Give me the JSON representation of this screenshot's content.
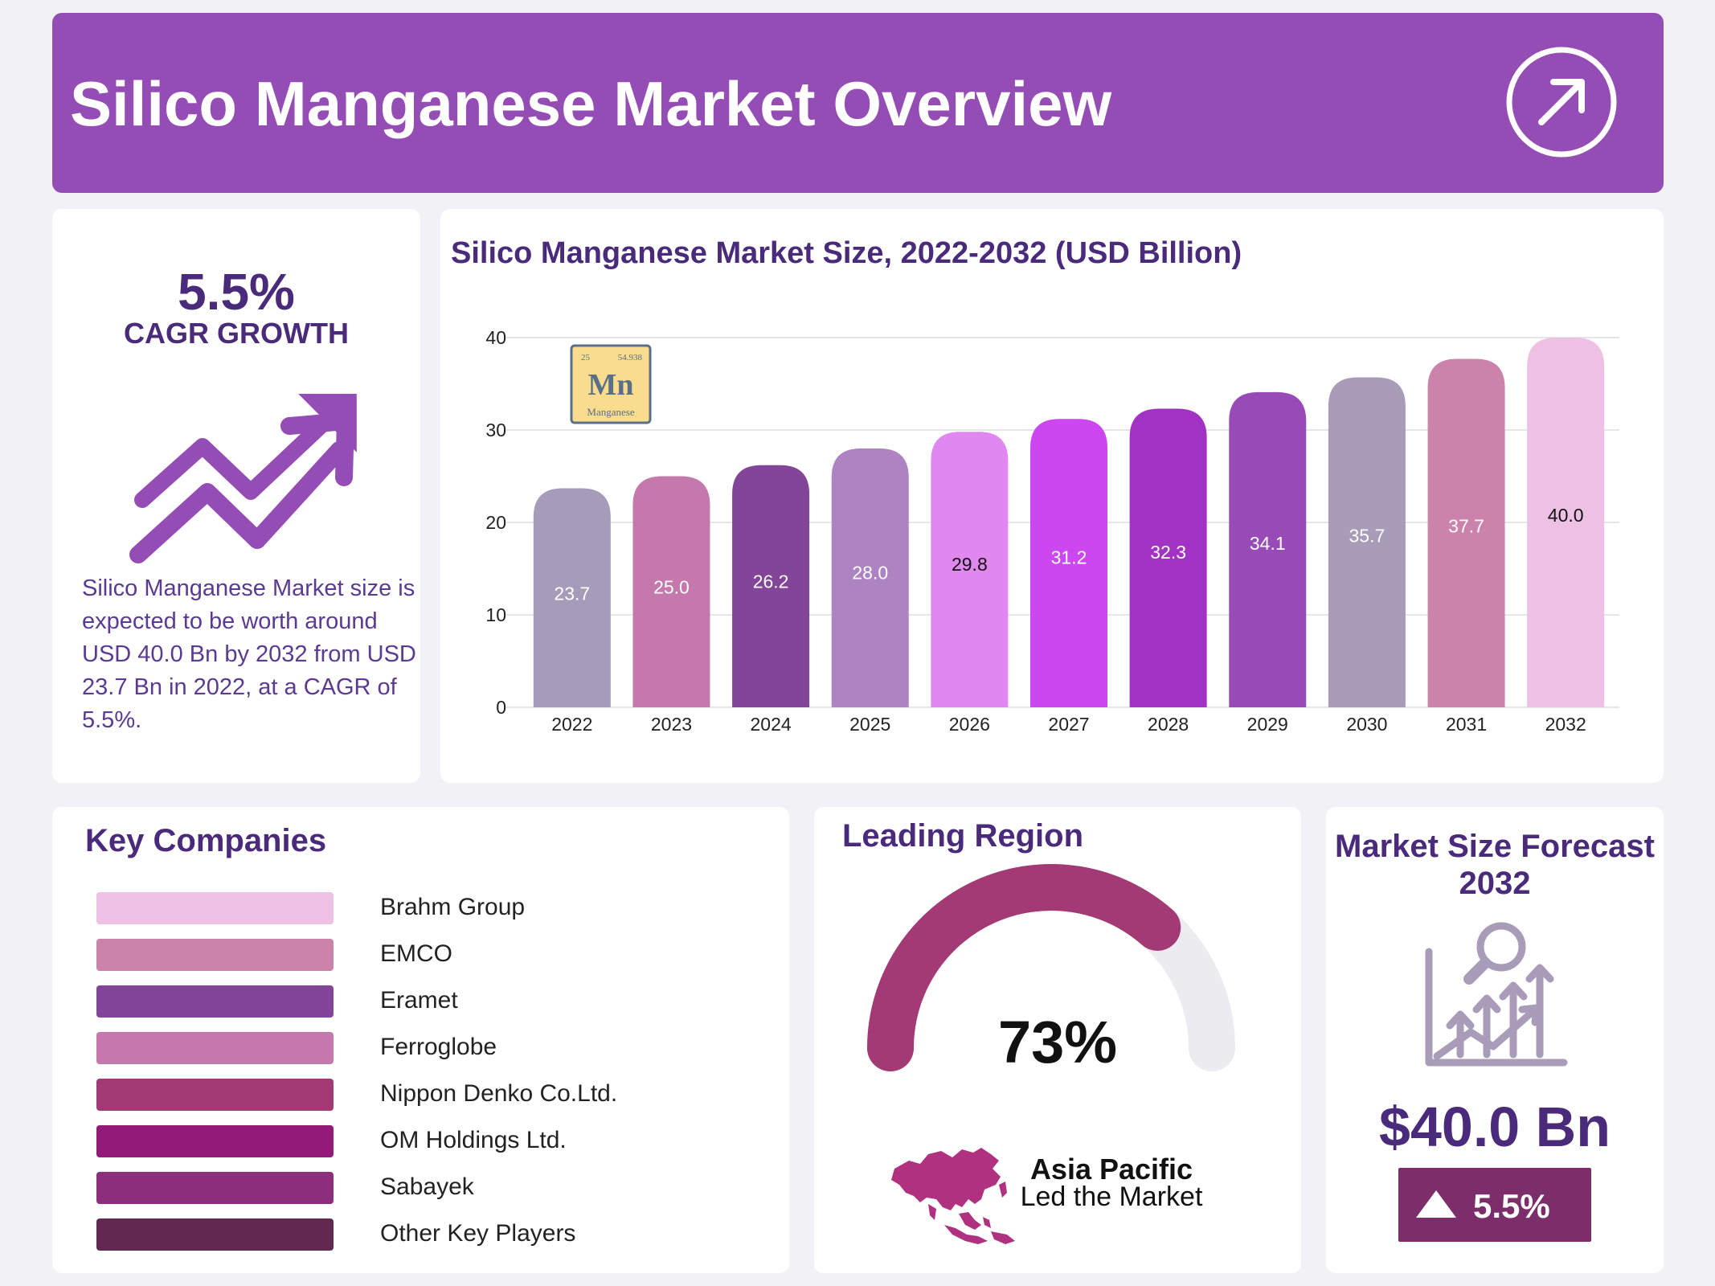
{
  "header": {
    "title": "Silico Manganese Market Overview",
    "icon": "arrow-up-right-circle-icon"
  },
  "cagr_card": {
    "value": "5.5%",
    "label": "CAGR GROWTH",
    "icon": "trend-up-arrow-icon",
    "description": "Silico Manganese Market size is expected to be worth around USD 40.0 Bn by 2032 from USD 23.7 Bn in 2022, at a CAGR of 5.5%."
  },
  "element_tile": {
    "number": "25",
    "mass": "54.938",
    "symbol": "Mn",
    "name": "Manganese"
  },
  "chart_data": {
    "type": "bar",
    "title": "Silico Manganese Market Size, 2022-2032 (USD Billion)",
    "xlabel": "",
    "ylabel": "",
    "ylim": [
      0,
      40
    ],
    "yticks": [
      0,
      10,
      20,
      30,
      40
    ],
    "grid": true,
    "categories": [
      "2022",
      "2023",
      "2024",
      "2025",
      "2026",
      "2027",
      "2028",
      "2029",
      "2030",
      "2031",
      "2032"
    ],
    "values": [
      23.7,
      25.0,
      26.2,
      28.0,
      29.8,
      31.2,
      32.3,
      34.1,
      35.7,
      37.7,
      40.0
    ],
    "labels": [
      "23.7",
      "25.0",
      "26.2",
      "28.0",
      "29.8",
      "31.2",
      "32.3",
      "34.1",
      "35.7",
      "37.7",
      "40.0"
    ],
    "colors": [
      "#a69cba",
      "#c478ab",
      "#834597",
      "#ad83c1",
      "#e088ef",
      "#cc47f0",
      "#a232c3",
      "#984ab6",
      "#a89cb8",
      "#cb82ab",
      "#ecc1e3"
    ],
    "label_colors": [
      "#ffffff",
      "#ffffff",
      "#ffffff",
      "#ffffff",
      "#111111",
      "#ffffff",
      "#ffffff",
      "#ffffff",
      "#ffffff",
      "#ffffff",
      "#111111"
    ]
  },
  "companies": {
    "title": "Key Companies",
    "items": [
      {
        "name": "Brahm Group",
        "color": "#edc1e4"
      },
      {
        "name": "EMCO",
        "color": "#cb82ab"
      },
      {
        "name": "Eramet",
        "color": "#834597"
      },
      {
        "name": "Ferroglobe",
        "color": "#c478ab"
      },
      {
        "name": "Nippon Denko Co.Ltd.",
        "color": "#a33a75"
      },
      {
        "name": "OM Holdings Ltd.",
        "color": "#931a78"
      },
      {
        "name": "Sabayek",
        "color": "#8c2e7c"
      },
      {
        "name": "Other Key Players",
        "color": "#612951"
      }
    ]
  },
  "region": {
    "title": "Leading Region",
    "share": 73,
    "share_label": "73%",
    "name": "Asia Pacific",
    "note": "Led the Market",
    "gauge_color": "#a33a75",
    "track_color": "#ecebf0",
    "map_icon": "asia-pacific-map-icon"
  },
  "forecast": {
    "title": "Market Size Forecast 2032",
    "icon": "growth-analysis-icon",
    "value": "$40.0 Bn",
    "growth": "5.5%"
  }
}
